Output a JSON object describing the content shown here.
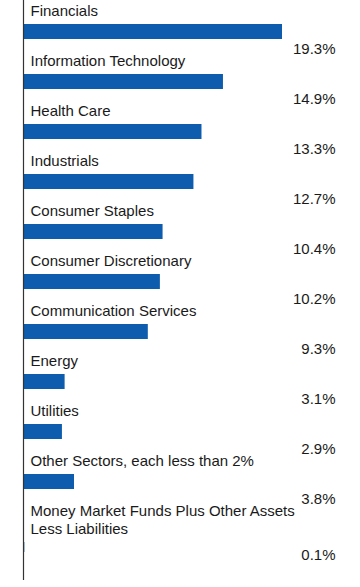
{
  "chart_data": {
    "type": "bar",
    "orientation": "horizontal",
    "categories": [
      "Financials",
      "Information Technology",
      "Health Care",
      "Industrials",
      "Consumer Staples",
      "Consumer Discretionary",
      "Communication Services",
      "Energy",
      "Utilities",
      "Other Sectors, each less than 2%",
      "Money Market Funds Plus Other Assets Less Liabilities"
    ],
    "values": [
      19.3,
      14.9,
      13.3,
      12.7,
      10.4,
      10.2,
      9.3,
      3.1,
      2.9,
      3.8,
      0.1
    ],
    "value_labels": [
      "19.3%",
      "14.9%",
      "13.3%",
      "12.7%",
      "10.4%",
      "10.2%",
      "9.3%",
      "3.1%",
      "2.9%",
      "3.8%",
      "0.1%"
    ],
    "color": "#0d5cad",
    "data_labels": true,
    "tick_labels": false
  }
}
